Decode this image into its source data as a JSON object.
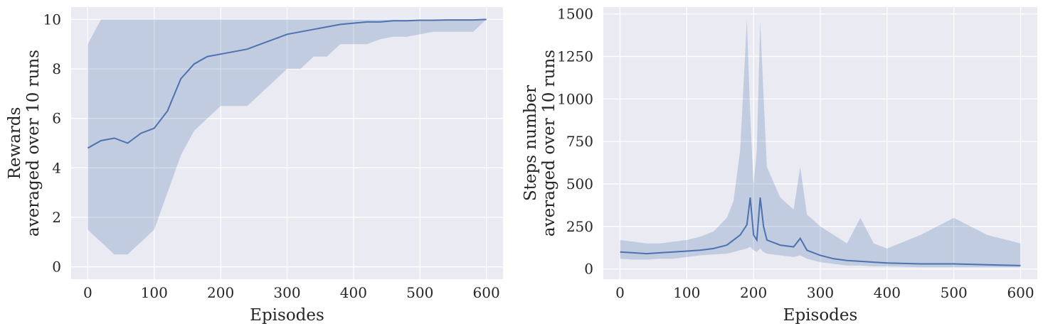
{
  "chart_data": [
    {
      "type": "line",
      "id": "rewards",
      "xlabel": "Episodes",
      "ylabel_lines": [
        "Rewards",
        "averaged over 10 runs"
      ],
      "xlim": [
        -25,
        625
      ],
      "ylim": [
        -0.5,
        10.5
      ],
      "xticks": [
        0,
        100,
        200,
        300,
        400,
        500,
        600
      ],
      "yticks": [
        0,
        2,
        4,
        6,
        8,
        10
      ],
      "grid": true,
      "line_color": "#4c72b0",
      "band_color": "#4c72b0",
      "band_opacity": 0.25,
      "series_segments": [
        {
          "x": [
            0,
            20,
            40,
            60,
            80,
            100,
            120,
            140,
            160,
            180,
            200,
            220,
            240,
            260,
            280,
            300,
            320,
            340,
            360,
            380,
            400,
            420,
            440,
            460,
            480,
            500,
            520,
            540,
            560,
            580,
            600
          ],
          "mean": [
            4.8,
            5.1,
            5.2,
            5.0,
            5.4,
            5.6,
            6.3,
            7.6,
            8.2,
            8.5,
            8.6,
            8.7,
            8.8,
            9.0,
            9.2,
            9.4,
            9.5,
            9.6,
            9.7,
            9.8,
            9.85,
            9.9,
            9.9,
            9.95,
            9.95,
            9.97,
            9.97,
            9.98,
            9.98,
            9.98,
            10.0
          ],
          "low": [
            1.5,
            1.0,
            0.5,
            0.5,
            1.0,
            1.5,
            3.0,
            4.5,
            5.5,
            6.0,
            6.5,
            6.5,
            6.5,
            7.0,
            7.5,
            8.0,
            8.0,
            8.5,
            8.5,
            9.0,
            9.0,
            9.0,
            9.2,
            9.3,
            9.3,
            9.4,
            9.5,
            9.5,
            9.5,
            9.5,
            10.0
          ],
          "high": [
            9.0,
            10.0,
            10.0,
            10.0,
            10.0,
            10.0,
            10.0,
            10.0,
            10.0,
            10.0,
            10.0,
            10.0,
            10.0,
            10.0,
            10.0,
            10.0,
            10.0,
            10.0,
            10.0,
            10.0,
            10.0,
            10.0,
            10.0,
            10.0,
            10.0,
            10.0,
            10.0,
            10.0,
            10.0,
            10.0,
            10.0
          ]
        }
      ]
    },
    {
      "type": "line",
      "id": "steps",
      "xlabel": "Episodes",
      "ylabel_lines": [
        "Steps number",
        "averaged over 10 runs"
      ],
      "xlim": [
        -25,
        625
      ],
      "ylim": [
        -60,
        1540
      ],
      "xticks": [
        0,
        100,
        200,
        300,
        400,
        500,
        600
      ],
      "yticks": [
        0,
        250,
        500,
        750,
        1000,
        1250,
        1500
      ],
      "grid": true,
      "line_color": "#4c72b0",
      "band_color": "#4c72b0",
      "band_opacity": 0.25,
      "series_segments": [
        {
          "x": [
            0,
            20,
            40,
            60,
            80,
            100,
            120,
            140,
            160,
            170,
            180,
            190,
            195,
            200,
            205,
            210,
            215,
            220,
            240,
            260,
            270,
            280,
            300,
            320,
            340,
            360,
            380,
            400,
            450,
            500,
            550,
            600
          ],
          "mean": [
            100,
            95,
            90,
            95,
            100,
            105,
            110,
            120,
            140,
            170,
            200,
            260,
            420,
            200,
            170,
            420,
            250,
            170,
            140,
            130,
            180,
            110,
            80,
            60,
            50,
            45,
            40,
            35,
            30,
            30,
            25,
            20
          ],
          "low": [
            60,
            55,
            55,
            60,
            60,
            70,
            80,
            85,
            90,
            100,
            110,
            120,
            130,
            110,
            100,
            120,
            100,
            90,
            80,
            70,
            80,
            60,
            40,
            30,
            20,
            20,
            15,
            15,
            10,
            10,
            10,
            10
          ],
          "high": [
            170,
            160,
            150,
            150,
            160,
            170,
            190,
            220,
            300,
            400,
            700,
            1470,
            900,
            500,
            700,
            1460,
            1020,
            600,
            420,
            350,
            600,
            320,
            250,
            200,
            150,
            300,
            150,
            120,
            200,
            300,
            200,
            150
          ]
        }
      ]
    }
  ]
}
